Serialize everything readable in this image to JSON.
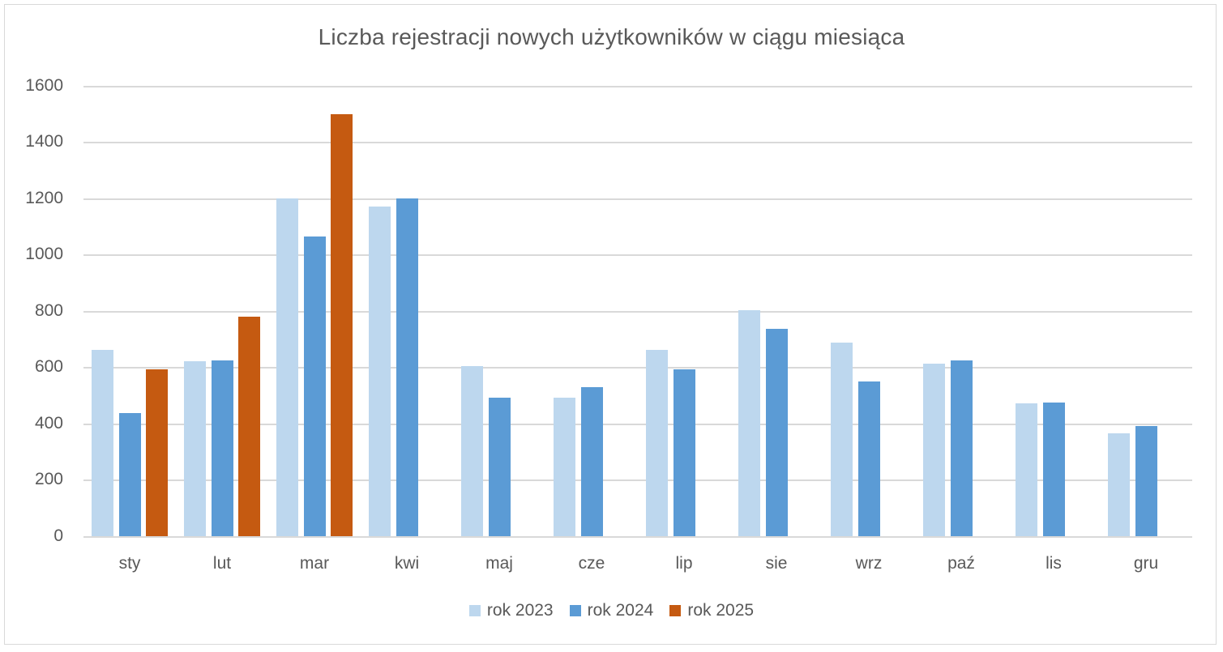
{
  "chart_data": {
    "type": "bar",
    "title": "Liczba rejestracji nowych użytkowników w ciągu miesiąca",
    "xlabel": "",
    "ylabel": "",
    "ylim": [
      0,
      1600
    ],
    "yticks": [
      0,
      200,
      400,
      600,
      800,
      1000,
      1200,
      1400,
      1600
    ],
    "grid": true,
    "legend_position": "bottom",
    "categories": [
      "sty",
      "lut",
      "mar",
      "kwi",
      "maj",
      "cze",
      "lip",
      "sie",
      "wrz",
      "paź",
      "lis",
      "gru"
    ],
    "series": [
      {
        "name": "rok 2023",
        "color": "#BDD7EE",
        "values": [
          665,
          623,
          1203,
          1175,
          605,
          495,
          665,
          805,
          690,
          615,
          475,
          368
        ]
      },
      {
        "name": "rok 2024",
        "color": "#5B9BD5",
        "values": [
          440,
          627,
          1067,
          1202,
          495,
          530,
          595,
          740,
          552,
          627,
          477,
          393
        ]
      },
      {
        "name": "rok 2025",
        "color": "#C55A11",
        "values": [
          595,
          782,
          1502,
          null,
          null,
          null,
          null,
          null,
          null,
          null,
          null,
          null
        ]
      }
    ]
  },
  "title": "Liczba rejestracji nowych użytkowników w ciągu miesiąca",
  "yticks": [
    "0",
    "200",
    "400",
    "600",
    "800",
    "1000",
    "1200",
    "1400",
    "1600"
  ],
  "legend": [
    "rok 2023",
    "rok 2024",
    "rok 2025"
  ]
}
